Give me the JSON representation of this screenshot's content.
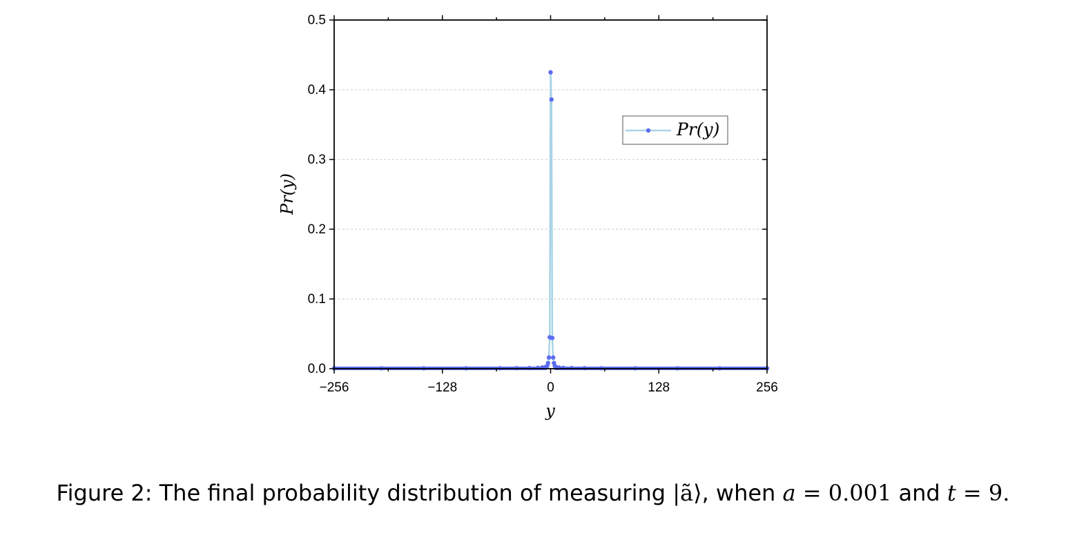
{
  "chart_data": {
    "type": "line",
    "xlabel": "y",
    "ylabel": "Pr(y)",
    "xlim": [
      -256,
      256
    ],
    "ylim": [
      0,
      0.5
    ],
    "xticks": [
      -256,
      -128,
      0,
      128,
      256
    ],
    "xtick_labels": [
      "−256",
      "−128",
      "0",
      "128",
      "256"
    ],
    "yticks": [
      0,
      0.1,
      0.2,
      0.3,
      0.4,
      0.5
    ],
    "ytick_labels": [
      "0.0",
      "0.1",
      "0.2",
      "0.3",
      "0.4",
      "0.5"
    ],
    "grid": "horizontal-dashed",
    "legend_position": "upper-right",
    "series": [
      {
        "name": "Pr(y)",
        "line_color": "#a8d4e6",
        "marker_color": "#5b6cf0",
        "x": [
          -256,
          -200,
          -150,
          -100,
          -60,
          -40,
          -25,
          -15,
          -10,
          -7,
          -5,
          -4,
          -3,
          -2,
          -1,
          0,
          1,
          2,
          3,
          4,
          5,
          7,
          10,
          15,
          25,
          40,
          60,
          100,
          150,
          200,
          256
        ],
        "y": [
          0.0005,
          0.0005,
          0.0005,
          0.0005,
          0.0006,
          0.0007,
          0.0009,
          0.0012,
          0.0016,
          0.002,
          0.003,
          0.004,
          0.008,
          0.016,
          0.045,
          0.425,
          0.386,
          0.044,
          0.016,
          0.008,
          0.004,
          0.002,
          0.0016,
          0.0012,
          0.0009,
          0.0007,
          0.0006,
          0.0005,
          0.0005,
          0.0005,
          0.0005
        ]
      }
    ]
  },
  "caption": {
    "prefix": "Figure 2: The final probability distribution of measuring ",
    "state": "|ã⟩",
    "mid1": ", when ",
    "a_var": "a",
    "a_eq": " = 0.001",
    "mid2": " and ",
    "t_var": "t",
    "t_eq": " = 9.",
    "suffix": ""
  }
}
